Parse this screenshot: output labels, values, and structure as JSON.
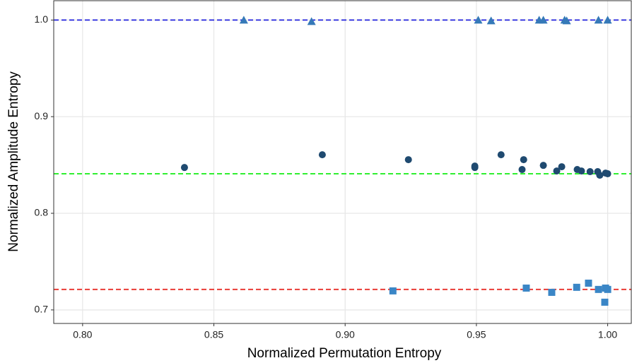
{
  "chart_data": {
    "type": "scatter",
    "x_label": "Normalized Permutation Entropy",
    "y_label": "Normalized Amplitude Entropy",
    "xlim": [
      0.789,
      1.009
    ],
    "ylim": [
      0.686,
      1.02
    ],
    "xticks": [
      {
        "value": 0.8,
        "label": "0.80"
      },
      {
        "value": 0.85,
        "label": "0.85"
      },
      {
        "value": 0.9,
        "label": "0.90"
      },
      {
        "value": 0.95,
        "label": "0.95"
      },
      {
        "value": 1.0,
        "label": "1.00"
      }
    ],
    "yticks": [
      0.7,
      0.8,
      0.9,
      {
        "value": 1.0,
        "label": "1.0"
      }
    ],
    "grid": true,
    "hlines": [
      {
        "y": 1.0,
        "color": "#2222dd"
      },
      {
        "y": 0.8409,
        "color": "#22ee22"
      },
      {
        "y": 0.7212,
        "color": "#e8302a"
      }
    ],
    "series": [
      {
        "marker": "triangle",
        "color": "#3579b8",
        "x": [
          0.8614,
          0.8872,
          0.9507,
          0.9556,
          0.9739,
          0.9755,
          0.9836,
          0.9844,
          0.9965,
          1.0
        ],
        "values": [
          1.0,
          0.9985,
          1.0,
          0.9993,
          1.0,
          1.0,
          1.0,
          0.9993,
          1.0,
          1.0
        ]
      },
      {
        "marker": "circle",
        "color": "#1f4a70",
        "x": [
          0.8388,
          0.8913,
          0.9241,
          0.9494,
          0.9494,
          0.9594,
          0.968,
          0.9674,
          0.9755,
          0.9825,
          0.9806,
          0.9884,
          0.99,
          0.9933,
          0.9962,
          0.997,
          0.9992,
          1.0
        ],
        "values": [
          0.8474,
          0.8606,
          0.8555,
          0.8489,
          0.8474,
          0.8606,
          0.8555,
          0.8453,
          0.8496,
          0.8482,
          0.8438,
          0.8453,
          0.8438,
          0.8431,
          0.8431,
          0.8394,
          0.8416,
          0.8409
        ]
      },
      {
        "marker": "square",
        "color": "#3a86c6",
        "x": [
          0.9182,
          0.969,
          0.9787,
          0.9882,
          0.9927,
          0.9965,
          0.9992,
          1.0,
          0.9989
        ],
        "values": [
          0.7197,
          0.7226,
          0.7182,
          0.7234,
          0.7277,
          0.7212,
          0.7226,
          0.7212,
          0.708
        ]
      }
    ]
  }
}
